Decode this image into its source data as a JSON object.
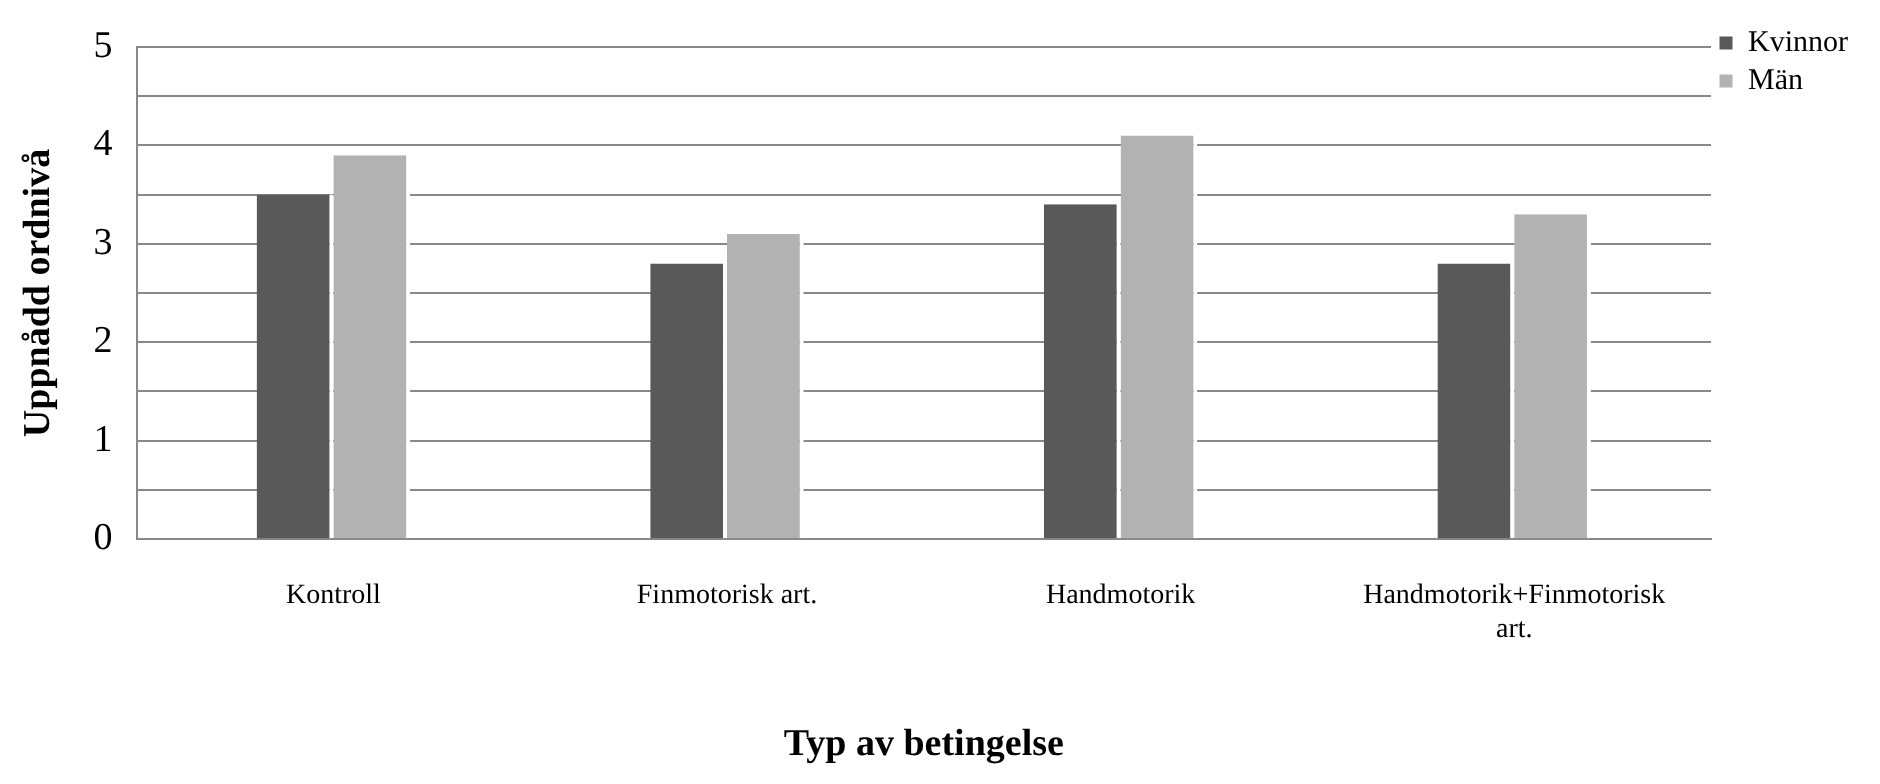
{
  "chart_data": {
    "type": "bar",
    "categories": [
      "Kontroll",
      "Finmotorisk art.",
      "Handmotorik",
      "Handmotorik+Finmotorisk art."
    ],
    "series": [
      {
        "name": "Kvinnor",
        "color": "#595959",
        "values": [
          3.5,
          2.8,
          3.4,
          2.8
        ]
      },
      {
        "name": "Män",
        "color": "#b2b2b2",
        "values": [
          3.9,
          3.1,
          4.1,
          3.3
        ]
      }
    ],
    "xlabel": "Typ av betingelse",
    "ylabel": "Uppnådd ordnivå",
    "ylim": [
      0,
      5
    ],
    "yticks": [
      0,
      {
        "value": 0.5,
        "label": null
      },
      1,
      {
        "value": 1.5,
        "label": null
      },
      2,
      {
        "value": 2.5,
        "label": null
      },
      3,
      {
        "value": 3.5,
        "label": null
      },
      4,
      {
        "value": 4.5,
        "label": null
      },
      5
    ],
    "grid": "y",
    "legend": "top right"
  }
}
